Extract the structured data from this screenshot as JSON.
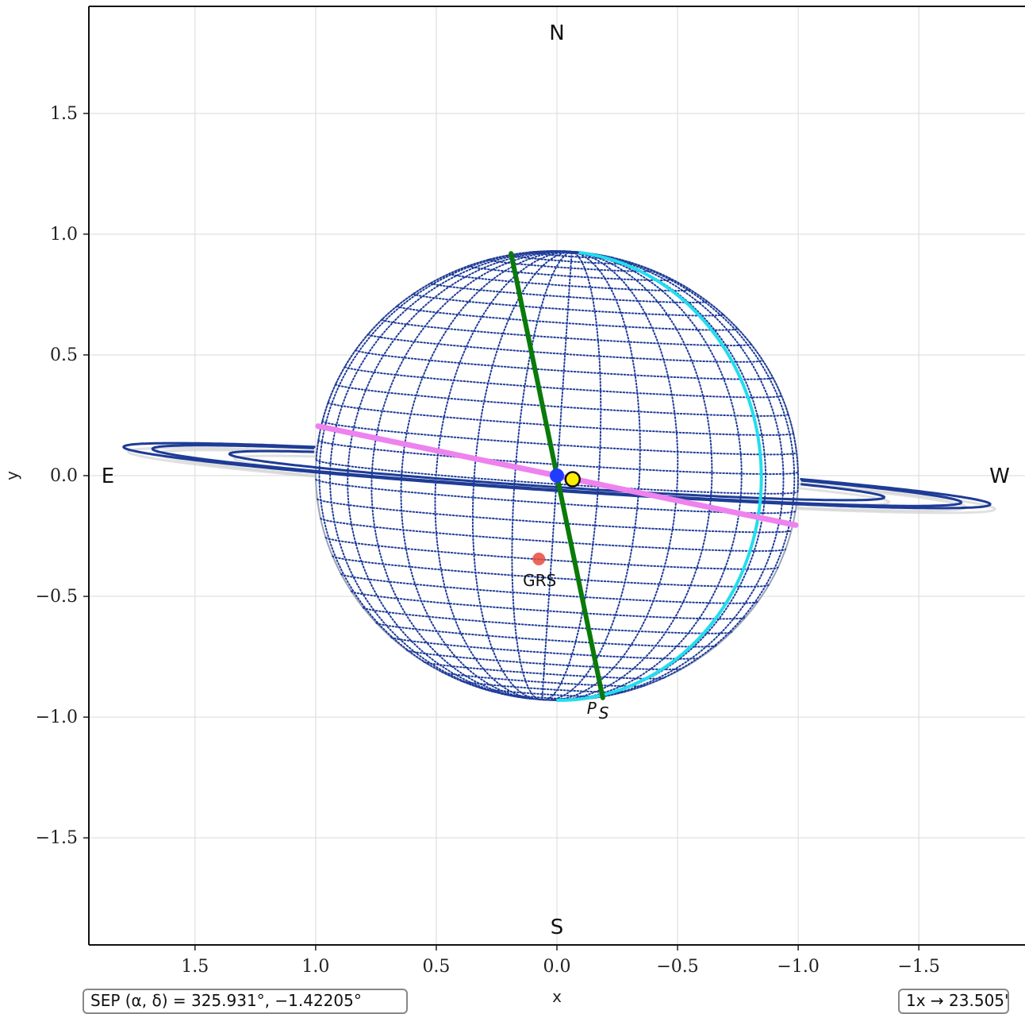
{
  "chart_data": {
    "type": "scatter",
    "title": "",
    "xlabel": "x",
    "ylabel": "y",
    "xlim": [
      1.94,
      -1.94
    ],
    "ylim": [
      -1.94,
      1.94
    ],
    "x_inverted": true,
    "grid": true,
    "xticks": [
      1.5,
      1.0,
      0.5,
      0.0,
      -0.5,
      -1.0,
      -1.5
    ],
    "xtick_labels": [
      "1.5",
      "1.0",
      "0.5",
      "0.0",
      "−0.5",
      "−1.0",
      "−1.5"
    ],
    "yticks": [
      1.5,
      1.0,
      0.5,
      0.0,
      -0.5,
      -1.0,
      -1.5
    ],
    "ytick_labels": [
      "1.5",
      "1.0",
      "0.5",
      "0.0",
      "−0.5",
      "−1.0",
      "−1.5"
    ],
    "compass": {
      "north": "N",
      "south": "S",
      "east": "E",
      "west": "W"
    },
    "planet": {
      "center": [
        0.0,
        0.0
      ],
      "radius": 1.0,
      "polar_radius": 0.93,
      "tilt_deg": 3.79,
      "sub_observer_lat_deg": 2.0,
      "meridian_spacing_deg": 10,
      "parallel_spacing_deg": 5,
      "grid_color": "#1f3c99"
    },
    "equator": {
      "from": [
        0.99,
        0.205
      ],
      "to": [
        -0.99,
        -0.205
      ],
      "color": "#ee82ee"
    },
    "rotation_axis": {
      "from": [
        0.19,
        0.92
      ],
      "to": [
        -0.19,
        -0.92
      ],
      "color": "#0a7a0a"
    },
    "central_meridian_color": "#22ddee",
    "rings": {
      "radii": [
        1.36,
        1.68,
        1.8
      ],
      "opening_ratio": 0.035,
      "color": "#1e3c96",
      "shadow_color": "#cccccc"
    },
    "markers": [
      {
        "name": "sub-observer",
        "x": 0.0,
        "y": 0.0,
        "color": "#1f3cff"
      },
      {
        "name": "sub-solar",
        "x": -0.065,
        "y": -0.015,
        "color": "#ffee00"
      },
      {
        "name": "GRS",
        "x": 0.075,
        "y": -0.345,
        "color": "#e74c3c"
      }
    ],
    "annotations": {
      "grs_label": "GRS",
      "pole_label": "P",
      "pole_subscript": "S"
    }
  },
  "footer": {
    "sep_text": "SEP (α, δ) = 325.931°, −1.42205°",
    "scale_text": "1x → 23.505\""
  }
}
